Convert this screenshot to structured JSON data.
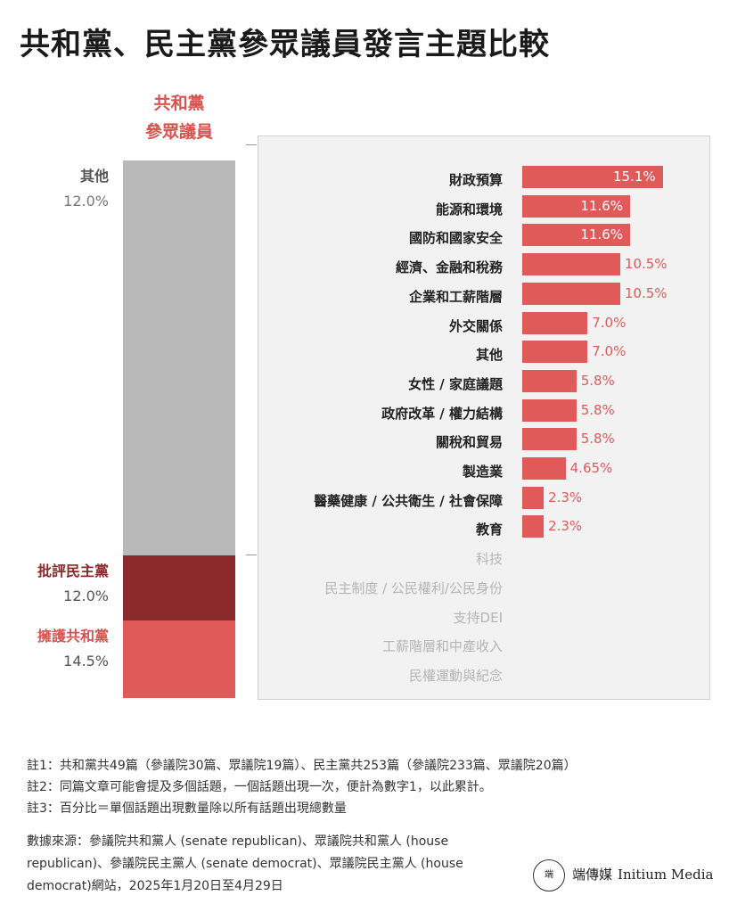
{
  "title": "共和黨、民主黨參眾議員發言主題比較",
  "stack": {
    "header": [
      "共和黨",
      "參眾議員"
    ],
    "segments": [
      {
        "name": "其他",
        "value": 12.0,
        "label": "12.0%",
        "color": "#b9b9b9",
        "label_color": "#555555",
        "value_color": "#777777"
      },
      {
        "name": "批評民主黨",
        "value": 12.0,
        "label": "12.0%",
        "color": "#8a2a2a",
        "label_color": "#8a2a2a",
        "value_color": "#555555"
      },
      {
        "name": "擁護共和黨",
        "value": 14.5,
        "label": "14.5%",
        "color": "#e05a5a",
        "label_color": "#d9534f",
        "value_color": "#555555"
      }
    ]
  },
  "chart_data": {
    "type": "bar",
    "orientation": "horizontal",
    "categories": [
      "財政預算",
      "能源和環境",
      "國防和國家安全",
      "經濟、金融和稅務",
      "企業和工薪階層",
      "外交關係",
      "其他",
      "女性 / 家庭議題",
      "政府改革 / 權力結構",
      "關稅和貿易",
      "製造業",
      "醫藥健康 / 公共衛生 / 社會保障",
      "教育",
      "科技",
      "民主制度 / 公民權利/公民身份",
      "支持DEI",
      "工薪階層和中產收入",
      "民權運動與紀念"
    ],
    "values": [
      15.1,
      11.6,
      11.6,
      10.5,
      10.5,
      7.0,
      7.0,
      5.8,
      5.8,
      5.8,
      4.65,
      2.3,
      2.3,
      0,
      0,
      0,
      0,
      0
    ],
    "value_labels": [
      "15.1%",
      "11.6%",
      "11.6%",
      "10.5%",
      "10.5%",
      "7.0%",
      "7.0%",
      "5.8%",
      "5.8%",
      "5.8%",
      "4.65%",
      "2.3%",
      "2.3%",
      "",
      "",
      "",
      "",
      ""
    ],
    "bar_color": "#e05a5a"
  },
  "notes": [
    "註1：共和黨共49篇（參議院30篇、眾議院19篇）、民主黨共253篇（參議院233篇、眾議院20篇）",
    "註2：同篇文章可能會提及多個話題，一個話題出現一次，便計為數字1，以此累計。",
    "註3：百分比＝單個話題出現數量除以所有話題出現總數量"
  ],
  "source": "數據來源：參議院共和黨人 (senate republican)、眾議院共和黨人 (house republican)、參議院民主黨人 (senate democrat)、眾議院民主黨人 (house democrat)網站，2025年1月20日至4月29日",
  "brand": {
    "zh": "端傳媒",
    "en": "Initium Media",
    "logo_text": "端"
  }
}
